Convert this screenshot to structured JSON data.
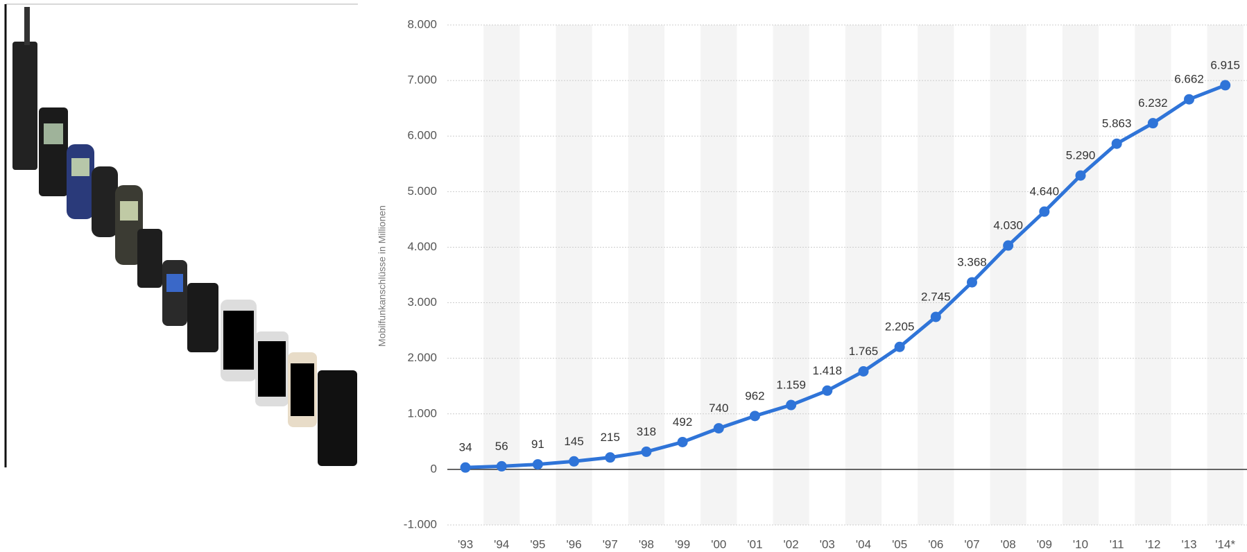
{
  "chart_data": {
    "type": "line",
    "y_label": "Mobilfunkanschlüsse in Millionen",
    "categories": [
      "'93",
      "'94",
      "'95",
      "'96",
      "'97",
      "'98",
      "'99",
      "'00",
      "'01",
      "'02",
      "'03",
      "'04",
      "'05",
      "'06",
      "'07",
      "'08",
      "'09",
      "'10",
      "'11",
      "'12",
      "'13",
      "'14*"
    ],
    "values": [
      34,
      56,
      91,
      145,
      215,
      318,
      492,
      740,
      962,
      1159,
      1418,
      1765,
      2205,
      2745,
      3368,
      4030,
      4640,
      5290,
      5863,
      6232,
      6662,
      6915
    ],
    "value_labels": [
      "34",
      "56",
      "91",
      "145",
      "215",
      "318",
      "492",
      "740",
      "962",
      "1.159",
      "1.418",
      "1.765",
      "2.205",
      "2.745",
      "3.368",
      "4.030",
      "4.640",
      "5.290",
      "5.863",
      "6.232",
      "6.662",
      "6.915"
    ],
    "color": "#2f74d8",
    "ylim": [
      -1000,
      8000
    ],
    "yticks": [
      {
        "value": -1000,
        "label": "-1.000"
      },
      0,
      {
        "value": 1000,
        "label": "1.000"
      },
      {
        "value": 2000,
        "label": "2.000"
      },
      {
        "value": 3000,
        "label": "3.000"
      },
      {
        "value": 4000,
        "label": "4.000"
      },
      {
        "value": 5000,
        "label": "5.000"
      },
      {
        "value": 6000,
        "label": "6.000"
      },
      {
        "value": 7000,
        "label": "7.000"
      },
      {
        "value": 8000,
        "label": "8.000"
      }
    ],
    "grid": true
  }
}
